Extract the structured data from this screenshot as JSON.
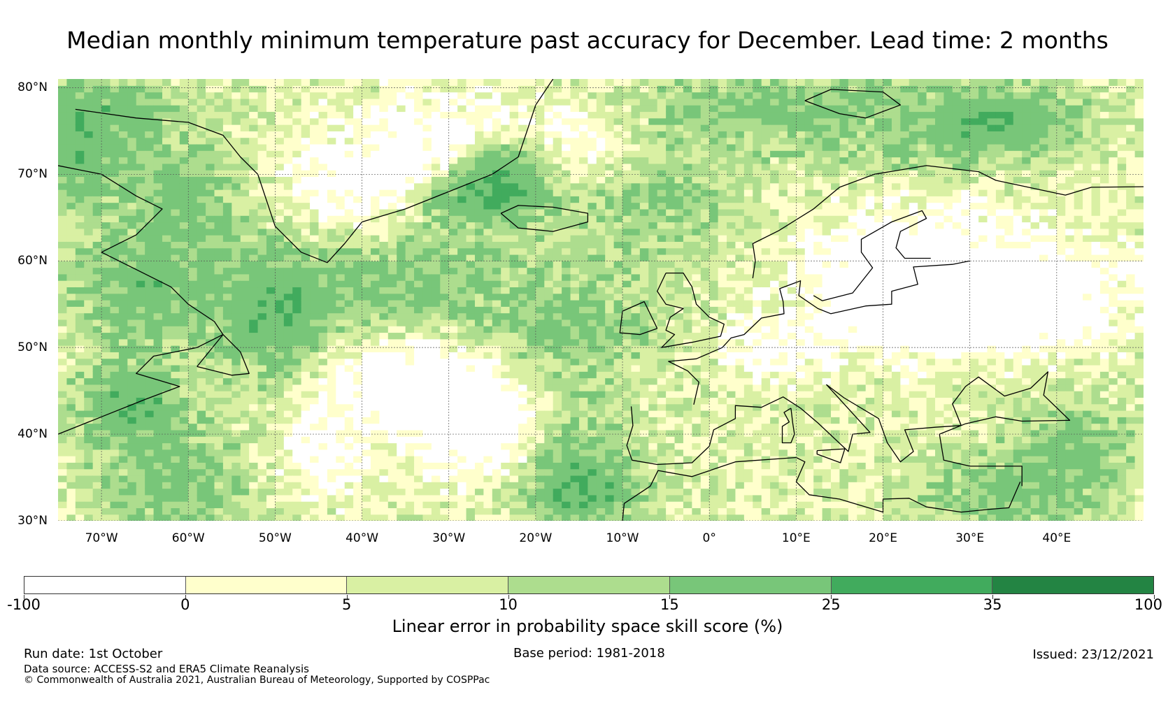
{
  "title": "Median monthly minimum temperature past accuracy for December. Lead time: 2 months",
  "map": {
    "region": "North Atlantic and Europe",
    "lon_range": [
      -75,
      50
    ],
    "lat_range": [
      30,
      81
    ],
    "lat_ticks": [
      {
        "value": 80,
        "label": "80°N"
      },
      {
        "value": 70,
        "label": "70°N"
      },
      {
        "value": 60,
        "label": "60°N"
      },
      {
        "value": 50,
        "label": "50°N"
      },
      {
        "value": 40,
        "label": "40°N"
      },
      {
        "value": 30,
        "label": "30°N"
      }
    ],
    "lon_ticks": [
      {
        "value": -70,
        "label": "70°W"
      },
      {
        "value": -60,
        "label": "60°W"
      },
      {
        "value": -50,
        "label": "50°W"
      },
      {
        "value": -40,
        "label": "40°W"
      },
      {
        "value": -30,
        "label": "30°W"
      },
      {
        "value": -20,
        "label": "20°W"
      },
      {
        "value": -10,
        "label": "10°W"
      },
      {
        "value": 0,
        "label": "0°"
      },
      {
        "value": 10,
        "label": "10°E"
      },
      {
        "value": 20,
        "label": "20°E"
      },
      {
        "value": 30,
        "label": "30°E"
      },
      {
        "value": 40,
        "label": "40°E"
      }
    ]
  },
  "colorbar": {
    "title": "Linear error in probability space skill score (%)",
    "boundaries": [
      "-100",
      "0",
      "5",
      "10",
      "15",
      "25",
      "35",
      "100"
    ],
    "colors": [
      "#ffffff",
      "#ffffcc",
      "#d9f0a3",
      "#addd8e",
      "#78c679",
      "#41ab5d",
      "#238443"
    ]
  },
  "footer": {
    "run_date": "Run date: 1st October",
    "base_period": "Base period: 1981-2018",
    "issued": "Issued: 23/12/2021",
    "data_source": "Data source: ACCESS-S2 and ERA5 Climate Reanalysis",
    "copyright": "© Commonwealth of Australia 2021, Australian Bureau of Meteorology, Supported by COSPPac"
  }
}
